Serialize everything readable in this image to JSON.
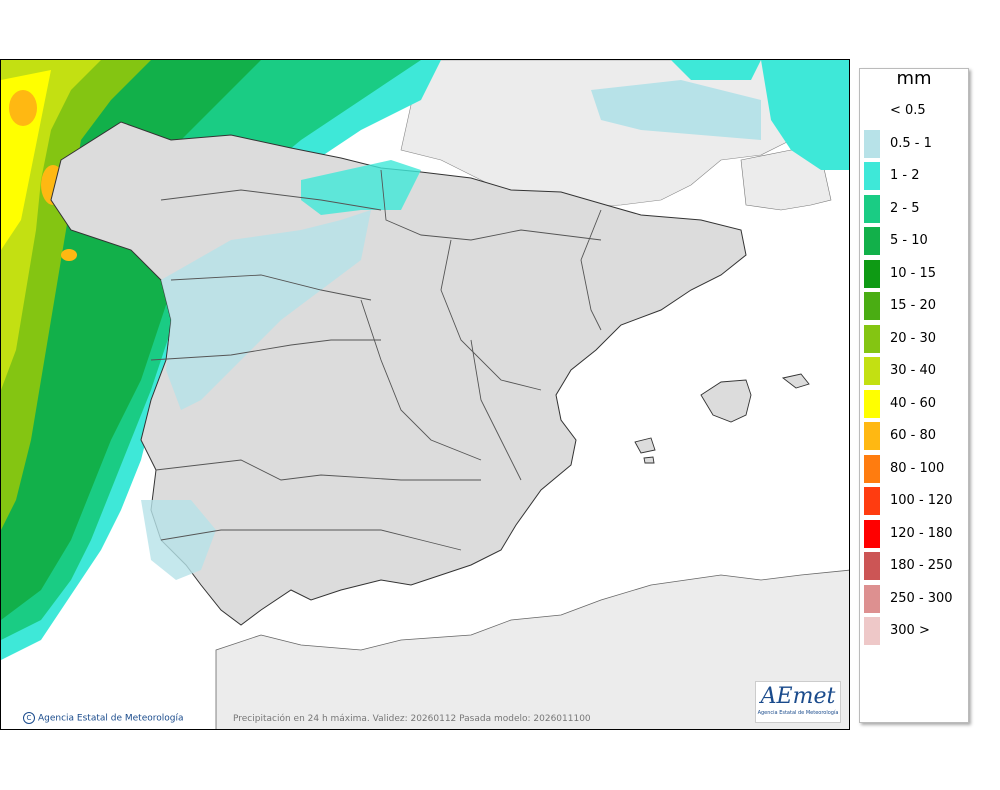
{
  "map": {
    "caption": "Precipitación en 24 h máxima. Validez: 20260112 Pasada modelo: 2026011100",
    "copyright": "Agencia Estatal de Meteorología",
    "copyright_icon": "copyright-icon",
    "logo_text": "AEmet",
    "logo_subtext": "Agencia Estatal de Meteorología"
  },
  "legend": {
    "unit": "mm",
    "classes": [
      {
        "label": "< 0.5",
        "color": "#ffffff"
      },
      {
        "label": "0.5 - 1",
        "color": "#b7e2e8"
      },
      {
        "label": "1 - 2",
        "color": "#3ee8d8"
      },
      {
        "label": "2 - 5",
        "color": "#1acc84"
      },
      {
        "label": "5 - 10",
        "color": "#12b04a"
      },
      {
        "label": "10 - 15",
        "color": "#0e9a14"
      },
      {
        "label": "15 - 20",
        "color": "#4aad13"
      },
      {
        "label": "20 - 30",
        "color": "#84c512"
      },
      {
        "label": "30 - 40",
        "color": "#c3e012"
      },
      {
        "label": "40 - 60",
        "color": "#ffff00"
      },
      {
        "label": "60 - 80",
        "color": "#ffb812"
      },
      {
        "label": "80 - 100",
        "color": "#ff7c0f"
      },
      {
        "label": "100 - 120",
        "color": "#ff3c10"
      },
      {
        "label": "120 - 180",
        "color": "#ff0000"
      },
      {
        "label": "180 - 250",
        "color": "#cc5555"
      },
      {
        "label": "250 - 300",
        "color": "#dd9090"
      },
      {
        "label": "300 >",
        "color": "#eec8c8"
      }
    ]
  }
}
